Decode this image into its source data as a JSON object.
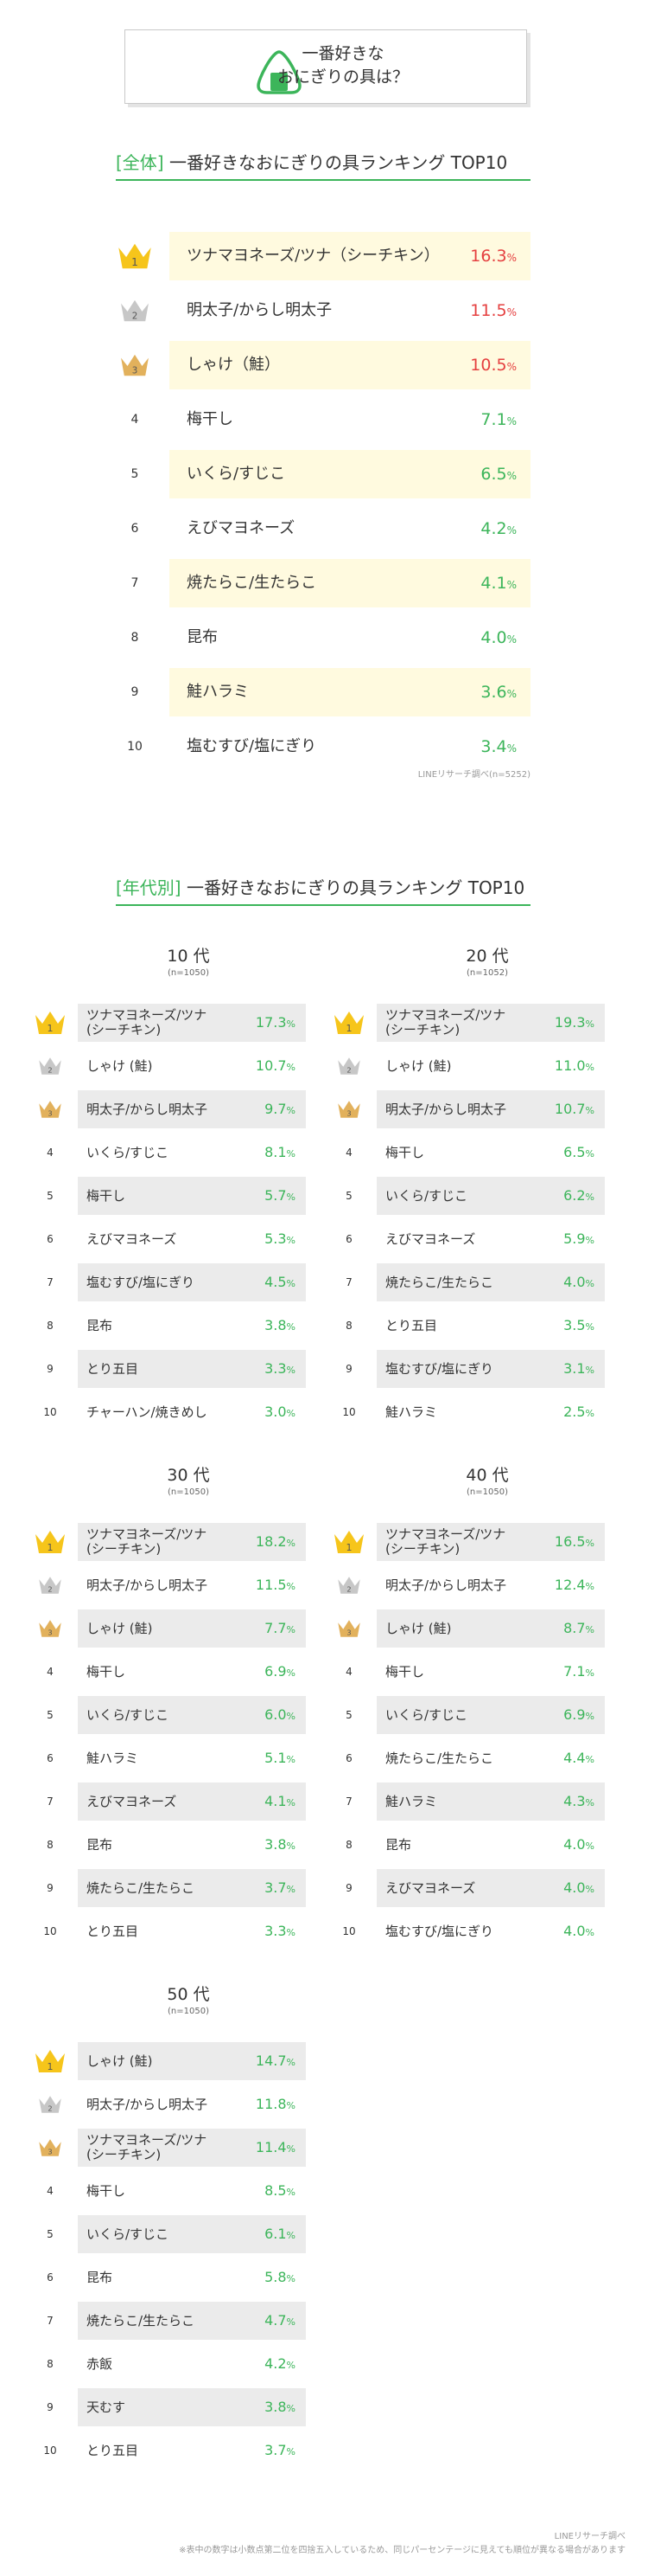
{
  "header": {
    "title_line1": "一番好きな",
    "title_line2": "おにぎりの具は？"
  },
  "overall": {
    "title_tag": "[全体]",
    "title_rest": "一番好きなおにぎりの具ランキング TOP10",
    "source": "LINEリサーチ調べ(n=5252)"
  },
  "age": {
    "title_tag": "[年代別]",
    "title_rest": "一番好きなおにぎりの具ランキング TOP10"
  },
  "footer": {
    "line1": "LINEリサーチ調べ",
    "line2": "※表中の数字は小数点第二位を四捨五入しているため、同じパーセンテージに見えても順位が異なる場合があります"
  },
  "colors": {
    "green": "#3cb55a",
    "red": "#e54040",
    "gold": "#f6c51b",
    "silver": "#c7c7c7",
    "bronze": "#e2b15c"
  },
  "chart_data": [
    {
      "type": "table",
      "title": "[全体] 一番好きなおにぎりの具ランキング TOP10",
      "unit": "%",
      "ranks": [
        "1",
        "2",
        "3",
        "4",
        "5",
        "6",
        "7",
        "8",
        "9",
        "10"
      ],
      "categories": [
        "ツナマヨネーズ/ツナ（シーチキン）",
        "明太子/からし明太子",
        "しゃけ（鮭）",
        "梅干し",
        "いくら/すじこ",
        "えびマヨネーズ",
        "焼たらこ/生たらこ",
        "昆布",
        "鮭ハラミ",
        "塩むすび/塩にぎり"
      ],
      "values": [
        16.3,
        11.5,
        10.5,
        7.1,
        6.5,
        4.2,
        4.1,
        4.0,
        3.6,
        3.4
      ],
      "n": "n=5252"
    },
    {
      "type": "table",
      "title": "10 代",
      "n": "(n=1050)",
      "unit": "%",
      "ranks": [
        "1",
        "2",
        "3",
        "4",
        "5",
        "6",
        "7",
        "8",
        "9",
        "10"
      ],
      "categories": [
        "ツナマヨネーズ/ツナ\n(シーチキン)",
        "しゃけ (鮭)",
        "明太子/からし明太子",
        "いくら/すじこ",
        "梅干し",
        "えびマヨネーズ",
        "塩むすび/塩にぎり",
        "昆布",
        "とり五目",
        "チャーハン/焼きめし"
      ],
      "values": [
        17.3,
        10.7,
        9.7,
        8.1,
        5.7,
        5.3,
        4.5,
        3.8,
        3.3,
        3.0
      ]
    },
    {
      "type": "table",
      "title": "20 代",
      "n": "(n=1052)",
      "unit": "%",
      "ranks": [
        "1",
        "2",
        "3",
        "4",
        "5",
        "6",
        "7",
        "8",
        "9",
        "10"
      ],
      "categories": [
        "ツナマヨネーズ/ツナ\n(シーチキン)",
        "しゃけ (鮭)",
        "明太子/からし明太子",
        "梅干し",
        "いくら/すじこ",
        "えびマヨネーズ",
        "焼たらこ/生たらこ",
        "とり五目",
        "塩むすび/塩にぎり",
        "鮭ハラミ"
      ],
      "values": [
        19.3,
        11.0,
        10.7,
        6.5,
        6.2,
        5.9,
        4.0,
        3.5,
        3.1,
        2.5
      ]
    },
    {
      "type": "table",
      "title": "30 代",
      "n": "(n=1050)",
      "unit": "%",
      "ranks": [
        "1",
        "2",
        "3",
        "4",
        "5",
        "6",
        "7",
        "8",
        "9",
        "10"
      ],
      "categories": [
        "ツナマヨネーズ/ツナ\n(シーチキン)",
        "明太子/からし明太子",
        "しゃけ (鮭)",
        "梅干し",
        "いくら/すじこ",
        "鮭ハラミ",
        "えびマヨネーズ",
        "昆布",
        "焼たらこ/生たらこ",
        "とり五目"
      ],
      "values": [
        18.2,
        11.5,
        7.7,
        6.9,
        6.0,
        5.1,
        4.1,
        3.8,
        3.7,
        3.3
      ]
    },
    {
      "type": "table",
      "title": "40 代",
      "n": "(n=1050)",
      "unit": "%",
      "ranks": [
        "1",
        "2",
        "3",
        "4",
        "5",
        "6",
        "7",
        "8",
        "9",
        "10"
      ],
      "categories": [
        "ツナマヨネーズ/ツナ\n(シーチキン)",
        "明太子/からし明太子",
        "しゃけ (鮭)",
        "梅干し",
        "いくら/すじこ",
        "焼たらこ/生たらこ",
        "鮭ハラミ",
        "昆布",
        "えびマヨネーズ",
        "塩むすび/塩にぎり"
      ],
      "values": [
        16.5,
        12.4,
        8.7,
        7.1,
        6.9,
        4.4,
        4.3,
        4.0,
        4.0,
        4.0
      ]
    },
    {
      "type": "table",
      "title": "50 代",
      "n": "(n=1050)",
      "unit": "%",
      "ranks": [
        "1",
        "2",
        "3",
        "4",
        "5",
        "6",
        "7",
        "8",
        "9",
        "10"
      ],
      "categories": [
        "しゃけ (鮭)",
        "明太子/からし明太子",
        "ツナマヨネーズ/ツナ\n(シーチキン)",
        "梅干し",
        "いくら/すじこ",
        "昆布",
        "焼たらこ/生たらこ",
        "赤飯",
        "天むす",
        "とり五目"
      ],
      "values": [
        14.7,
        11.8,
        11.4,
        8.5,
        6.1,
        5.8,
        4.7,
        4.2,
        3.8,
        3.7
      ]
    }
  ]
}
